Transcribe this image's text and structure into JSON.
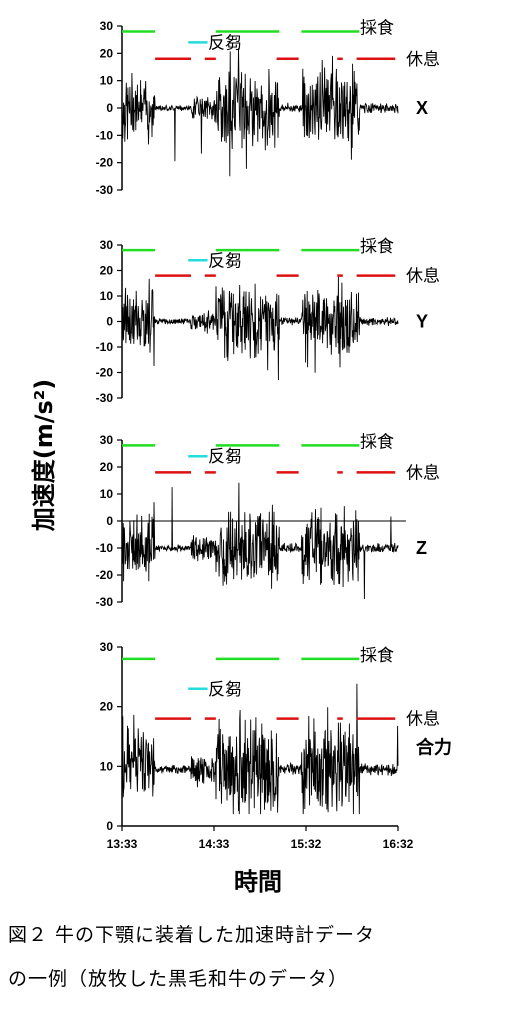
{
  "ylabel": "加速度(m/s²)",
  "xlabel": "時間",
  "x_ticks": [
    "13:33",
    "14:33",
    "15:32",
    "16:32"
  ],
  "legend": {
    "eating": "採食",
    "rumination": "反芻",
    "resting": "休息"
  },
  "colors": {
    "eating": "#22dd22",
    "rumination": "#22dddd",
    "resting": "#dd1111",
    "signal": "#000000"
  },
  "caption": {
    "line1": "図２ 牛の下顎に装着した加速時計データ",
    "line2": "の一例（放牧した黒毛和牛のデータ）"
  },
  "chart_data": [
    {
      "type": "line",
      "axis_name": "X",
      "yticks": [
        30,
        20,
        10,
        0,
        -10,
        -20,
        -30
      ],
      "ylim": [
        -30,
        30
      ],
      "baseline": 0,
      "behavior_levels": {
        "eating": 28,
        "rumination": 24,
        "resting": 18
      }
    },
    {
      "type": "line",
      "axis_name": "Y",
      "yticks": [
        30,
        20,
        10,
        0,
        -10,
        -20,
        -30
      ],
      "ylim": [
        -30,
        30
      ],
      "baseline": 0,
      "behavior_levels": {
        "eating": 28,
        "rumination": 24,
        "resting": 18
      }
    },
    {
      "type": "line",
      "axis_name": "Z",
      "yticks": [
        30,
        20,
        10,
        0,
        -10,
        -20,
        -30
      ],
      "ylim": [
        -30,
        30
      ],
      "baseline": -10,
      "behavior_levels": {
        "eating": 28,
        "rumination": 24,
        "resting": 18
      }
    },
    {
      "type": "line",
      "axis_name": "合力",
      "yticks": [
        30,
        20,
        10,
        0
      ],
      "ylim": [
        0,
        30
      ],
      "baseline": 9.5,
      "behavior_levels": {
        "eating": 28,
        "rumination": 23,
        "resting": 18
      }
    }
  ]
}
